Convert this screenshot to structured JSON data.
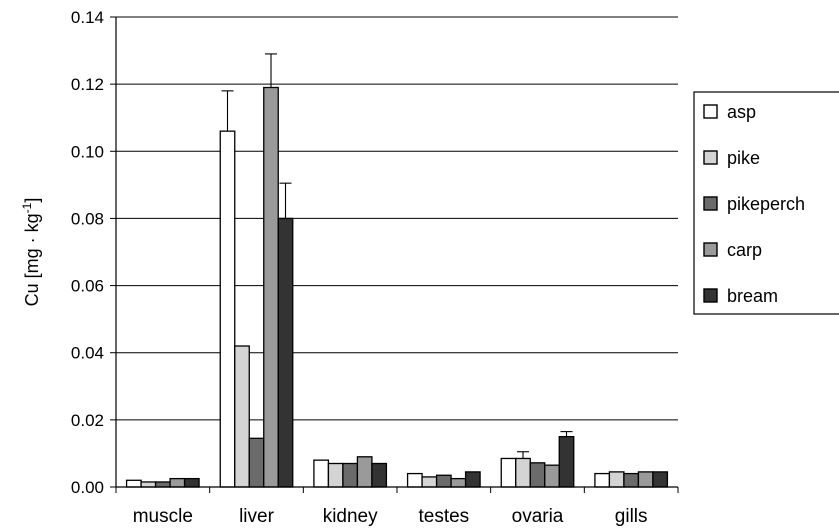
{
  "chart_data": {
    "type": "bar",
    "title": "",
    "xlabel": "",
    "ylabel": "Cu [mg · kg",
    "ylabel_sup": "-1",
    "ylabel_close": "]",
    "ylim": [
      0,
      0.14
    ],
    "yticks": [
      "0.00",
      "0.02",
      "0.04",
      "0.06",
      "0.08",
      "0.10",
      "0.12",
      "0.14"
    ],
    "grid": true,
    "legend_position": "right",
    "categories": [
      "muscle",
      "liver",
      "kidney",
      "testes",
      "ovaria",
      "gills"
    ],
    "series": [
      {
        "name": "asp",
        "color": "#ffffff",
        "values": [
          0.002,
          0.106,
          0.008,
          0.004,
          0.0085,
          0.004
        ],
        "errors": [
          0.0003,
          0.012,
          0.0005,
          0.0003,
          0.0003,
          0.0002
        ]
      },
      {
        "name": "pike",
        "color": "#d4d4d4",
        "values": [
          0.0015,
          0.042,
          0.007,
          0.003,
          0.0085,
          0.0045
        ],
        "errors": [
          0.0002,
          0.0003,
          0.0003,
          0.0003,
          0.002,
          0.0002
        ]
      },
      {
        "name": "pikeperch",
        "color": "#6b6b6b",
        "values": [
          0.0015,
          0.0145,
          0.007,
          0.0035,
          0.0072,
          0.004
        ],
        "errors": [
          0.0002,
          0.0003,
          0.0003,
          0.0002,
          0.0003,
          0.0002
        ]
      },
      {
        "name": "carp",
        "color": "#9a9a9a",
        "values": [
          0.0025,
          0.119,
          0.009,
          0.0025,
          0.0065,
          0.0045
        ],
        "errors": [
          0.0002,
          0.01,
          0.0003,
          0.0002,
          0.0003,
          0.0002
        ]
      },
      {
        "name": "bream",
        "color": "#333333",
        "values": [
          0.0025,
          0.08,
          0.007,
          0.0045,
          0.015,
          0.0045
        ],
        "errors": [
          0.0002,
          0.0105,
          0.0003,
          0.0002,
          0.0015,
          0.0002
        ]
      }
    ]
  }
}
